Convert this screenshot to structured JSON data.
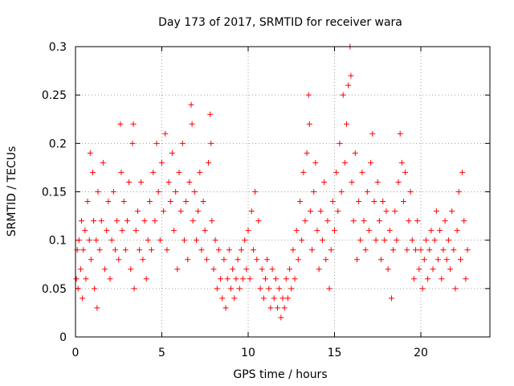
{
  "chart_data": {
    "type": "scatter",
    "title": "Day 173 of 2017, SRMTID for receiver wara",
    "xlabel": "GPS time / hours",
    "ylabel": "SRMTID / TECUs",
    "xlim": [
      0,
      24
    ],
    "ylim": [
      0,
      0.3
    ],
    "xticks": [
      0,
      5,
      10,
      15,
      20
    ],
    "xtick_labels": [
      "0",
      "5",
      "10",
      "15",
      "20"
    ],
    "yticks": [
      0,
      0.05,
      0.1,
      0.15,
      0.2,
      0.25,
      0.3
    ],
    "ytick_labels": [
      "0",
      "0.05",
      "0.1",
      "0.15",
      "0.2",
      "0.25",
      "0.3"
    ],
    "grid": true,
    "marker": "+",
    "color": "#ff0000",
    "series": [
      {
        "name": "SRMTID",
        "points": [
          [
            0.05,
            0.06
          ],
          [
            0.1,
            0.09
          ],
          [
            0.15,
            0.05
          ],
          [
            0.2,
            0.1
          ],
          [
            0.3,
            0.07
          ],
          [
            0.35,
            0.12
          ],
          [
            0.4,
            0.04
          ],
          [
            0.45,
            0.09
          ],
          [
            0.55,
            0.11
          ],
          [
            0.6,
            0.06
          ],
          [
            0.7,
            0.14
          ],
          [
            0.8,
            0.1
          ],
          [
            0.85,
            0.19
          ],
          [
            0.9,
            0.08
          ],
          [
            1.0,
            0.17
          ],
          [
            1.05,
            0.12
          ],
          [
            1.1,
            0.05
          ],
          [
            1.2,
            0.1
          ],
          [
            1.25,
            0.03
          ],
          [
            1.3,
            0.15
          ],
          [
            1.4,
            0.09
          ],
          [
            1.5,
            0.12
          ],
          [
            1.6,
            0.18
          ],
          [
            1.7,
            0.07
          ],
          [
            1.8,
            0.11
          ],
          [
            1.9,
            0.14
          ],
          [
            2.0,
            0.06
          ],
          [
            2.1,
            0.1
          ],
          [
            2.2,
            0.15
          ],
          [
            2.3,
            0.09
          ],
          [
            2.4,
            0.12
          ],
          [
            2.5,
            0.08
          ],
          [
            2.6,
            0.22
          ],
          [
            2.65,
            0.17
          ],
          [
            2.7,
            0.11
          ],
          [
            2.8,
            0.14
          ],
          [
            2.9,
            0.09
          ],
          [
            3.0,
            0.12
          ],
          [
            3.1,
            0.16
          ],
          [
            3.2,
            0.07
          ],
          [
            3.3,
            0.2
          ],
          [
            3.35,
            0.22
          ],
          [
            3.4,
            0.05
          ],
          [
            3.5,
            0.11
          ],
          [
            3.6,
            0.13
          ],
          [
            3.7,
            0.09
          ],
          [
            3.8,
            0.16
          ],
          [
            3.9,
            0.08
          ],
          [
            4.0,
            0.12
          ],
          [
            4.1,
            0.06
          ],
          [
            4.2,
            0.1
          ],
          [
            4.3,
            0.14
          ],
          [
            4.4,
            0.09
          ],
          [
            4.5,
            0.17
          ],
          [
            4.6,
            0.12
          ],
          [
            4.7,
            0.2
          ],
          [
            4.8,
            0.15
          ],
          [
            4.9,
            0.1
          ],
          [
            5.0,
            0.18
          ],
          [
            5.1,
            0.13
          ],
          [
            5.2,
            0.21
          ],
          [
            5.3,
            0.09
          ],
          [
            5.4,
            0.16
          ],
          [
            5.5,
            0.14
          ],
          [
            5.6,
            0.19
          ],
          [
            5.7,
            0.11
          ],
          [
            5.8,
            0.15
          ],
          [
            5.9,
            0.07
          ],
          [
            6.0,
            0.17
          ],
          [
            6.1,
            0.13
          ],
          [
            6.2,
            0.2
          ],
          [
            6.3,
            0.1
          ],
          [
            6.4,
            0.14
          ],
          [
            6.5,
            0.08
          ],
          [
            6.6,
            0.16
          ],
          [
            6.7,
            0.24
          ],
          [
            6.75,
            0.22
          ],
          [
            6.8,
            0.12
          ],
          [
            6.9,
            0.15
          ],
          [
            7.0,
            0.1
          ],
          [
            7.1,
            0.13
          ],
          [
            7.2,
            0.17
          ],
          [
            7.3,
            0.09
          ],
          [
            7.4,
            0.14
          ],
          [
            7.5,
            0.11
          ],
          [
            7.6,
            0.08
          ],
          [
            7.7,
            0.18
          ],
          [
            7.8,
            0.23
          ],
          [
            7.85,
            0.2
          ],
          [
            7.9,
            0.12
          ],
          [
            8.0,
            0.07
          ],
          [
            8.1,
            0.1
          ],
          [
            8.2,
            0.05
          ],
          [
            8.3,
            0.09
          ],
          [
            8.4,
            0.06
          ],
          [
            8.5,
            0.04
          ],
          [
            8.6,
            0.08
          ],
          [
            8.7,
            0.03
          ],
          [
            8.8,
            0.06
          ],
          [
            8.9,
            0.09
          ],
          [
            9.0,
            0.05
          ],
          [
            9.1,
            0.07
          ],
          [
            9.2,
            0.04
          ],
          [
            9.3,
            0.06
          ],
          [
            9.4,
            0.08
          ],
          [
            9.5,
            0.05
          ],
          [
            9.6,
            0.09
          ],
          [
            9.7,
            0.06
          ],
          [
            9.8,
            0.1
          ],
          [
            9.9,
            0.07
          ],
          [
            10.0,
            0.11
          ],
          [
            10.1,
            0.06
          ],
          [
            10.2,
            0.13
          ],
          [
            10.3,
            0.09
          ],
          [
            10.4,
            0.15
          ],
          [
            10.5,
            0.08
          ],
          [
            10.6,
            0.12
          ],
          [
            10.7,
            0.05
          ],
          [
            10.8,
            0.07
          ],
          [
            10.9,
            0.04
          ],
          [
            11.0,
            0.06
          ],
          [
            11.1,
            0.08
          ],
          [
            11.2,
            0.05
          ],
          [
            11.3,
            0.03
          ],
          [
            11.4,
            0.07
          ],
          [
            11.5,
            0.04
          ],
          [
            11.6,
            0.06
          ],
          [
            11.7,
            0.03
          ],
          [
            11.8,
            0.05
          ],
          [
            11.9,
            0.02
          ],
          [
            12.0,
            0.04
          ],
          [
            12.1,
            0.03
          ],
          [
            12.2,
            0.06
          ],
          [
            12.3,
            0.04
          ],
          [
            12.4,
            0.07
          ],
          [
            12.5,
            0.05
          ],
          [
            12.6,
            0.09
          ],
          [
            12.7,
            0.06
          ],
          [
            12.8,
            0.11
          ],
          [
            12.9,
            0.08
          ],
          [
            13.0,
            0.14
          ],
          [
            13.1,
            0.1
          ],
          [
            13.2,
            0.17
          ],
          [
            13.3,
            0.12
          ],
          [
            13.4,
            0.19
          ],
          [
            13.5,
            0.25
          ],
          [
            13.55,
            0.22
          ],
          [
            13.6,
            0.13
          ],
          [
            13.7,
            0.09
          ],
          [
            13.8,
            0.15
          ],
          [
            13.9,
            0.18
          ],
          [
            14.0,
            0.11
          ],
          [
            14.1,
            0.07
          ],
          [
            14.2,
            0.13
          ],
          [
            14.3,
            0.1
          ],
          [
            14.4,
            0.16
          ],
          [
            14.5,
            0.08
          ],
          [
            14.6,
            0.12
          ],
          [
            14.7,
            0.05
          ],
          [
            14.8,
            0.09
          ],
          [
            14.9,
            0.14
          ],
          [
            15.0,
            0.11
          ],
          [
            15.1,
            0.17
          ],
          [
            15.2,
            0.13
          ],
          [
            15.3,
            0.2
          ],
          [
            15.4,
            0.15
          ],
          [
            15.5,
            0.25
          ],
          [
            15.6,
            0.18
          ],
          [
            15.7,
            0.22
          ],
          [
            15.8,
            0.26
          ],
          [
            15.9,
            0.3
          ],
          [
            15.95,
            0.27
          ],
          [
            16.0,
            0.16
          ],
          [
            16.1,
            0.12
          ],
          [
            16.2,
            0.19
          ],
          [
            16.3,
            0.08
          ],
          [
            16.4,
            0.14
          ],
          [
            16.5,
            0.1
          ],
          [
            16.6,
            0.17
          ],
          [
            16.7,
            0.12
          ],
          [
            16.8,
            0.09
          ],
          [
            16.9,
            0.15
          ],
          [
            17.0,
            0.11
          ],
          [
            17.1,
            0.18
          ],
          [
            17.2,
            0.21
          ],
          [
            17.3,
            0.14
          ],
          [
            17.4,
            0.1
          ],
          [
            17.5,
            0.16
          ],
          [
            17.6,
            0.12
          ],
          [
            17.7,
            0.08
          ],
          [
            17.8,
            0.14
          ],
          [
            17.9,
            0.1
          ],
          [
            18.0,
            0.13
          ],
          [
            18.1,
            0.07
          ],
          [
            18.2,
            0.11
          ],
          [
            18.3,
            0.04
          ],
          [
            18.4,
            0.09
          ],
          [
            18.5,
            0.13
          ],
          [
            18.6,
            0.1
          ],
          [
            18.7,
            0.16
          ],
          [
            18.8,
            0.21
          ],
          [
            18.9,
            0.18
          ],
          [
            19.0,
            0.14
          ],
          [
            19.1,
            0.17
          ],
          [
            19.2,
            0.09
          ],
          [
            19.3,
            0.12
          ],
          [
            19.4,
            0.15
          ],
          [
            19.5,
            0.1
          ],
          [
            19.6,
            0.06
          ],
          [
            19.7,
            0.09
          ],
          [
            19.8,
            0.12
          ],
          [
            19.9,
            0.07
          ],
          [
            20.0,
            0.09
          ],
          [
            20.1,
            0.05
          ],
          [
            20.2,
            0.08
          ],
          [
            20.3,
            0.1
          ],
          [
            20.4,
            0.06
          ],
          [
            20.5,
            0.09
          ],
          [
            20.6,
            0.11
          ],
          [
            20.7,
            0.07
          ],
          [
            20.8,
            0.1
          ],
          [
            20.9,
            0.13
          ],
          [
            21.0,
            0.08
          ],
          [
            21.1,
            0.11
          ],
          [
            21.2,
            0.06
          ],
          [
            21.3,
            0.09
          ],
          [
            21.4,
            0.12
          ],
          [
            21.5,
            0.08
          ],
          [
            21.6,
            0.1
          ],
          [
            21.7,
            0.07
          ],
          [
            21.8,
            0.13
          ],
          [
            21.9,
            0.09
          ],
          [
            22.0,
            0.05
          ],
          [
            22.1,
            0.11
          ],
          [
            22.2,
            0.15
          ],
          [
            22.3,
            0.08
          ],
          [
            22.4,
            0.17
          ],
          [
            22.5,
            0.12
          ],
          [
            22.6,
            0.06
          ],
          [
            22.7,
            0.09
          ]
        ]
      }
    ]
  }
}
